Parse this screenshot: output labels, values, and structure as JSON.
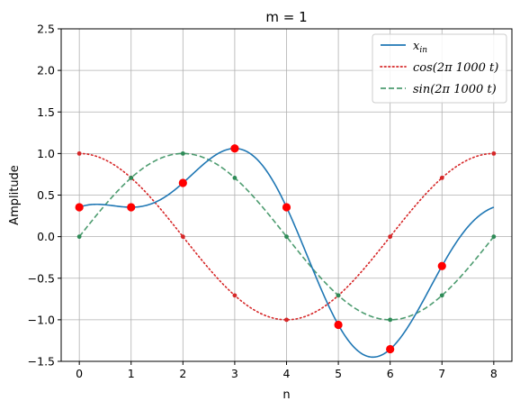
{
  "chart_data": {
    "type": "line",
    "title": "m = 1",
    "xlabel": "n",
    "ylabel": "Amplitude",
    "xlim": [
      -0.35,
      8.35
    ],
    "ylim": [
      -1.5,
      2.5
    ],
    "grid": true,
    "legend_position": "top-right",
    "x_ticks": [
      0,
      1,
      2,
      3,
      4,
      5,
      6,
      7,
      8
    ],
    "y_ticks": [
      -1.5,
      -1.0,
      -0.5,
      0.0,
      0.5,
      1.0,
      1.5,
      2.0,
      2.5
    ],
    "x_tick_labels": [
      "0",
      "1",
      "2",
      "3",
      "4",
      "5",
      "6",
      "7",
      "8"
    ],
    "y_tick_labels": [
      "−1.5",
      "−1.0",
      "−0.5",
      "0.0",
      "0.5",
      "1.0",
      "1.5",
      "2.0",
      "2.5"
    ],
    "series": [
      {
        "name": "x_in",
        "legend_main": "x",
        "legend_sub": "in",
        "style": "solid",
        "color": "#1f77b4",
        "samples": [
          0.354,
          0.354,
          0.646,
          1.061,
          0.354,
          -1.061,
          -1.354,
          -0.354
        ]
      },
      {
        "name": "cos(2π 1000 t)",
        "legend_label": "cos(2π 1000 t)",
        "style": "dotted",
        "color": "#d62728",
        "samples": [
          1.0,
          0.707,
          0.0,
          -0.707,
          -1.0,
          -0.707,
          0.0,
          0.707,
          1.0
        ]
      },
      {
        "name": "sin(2π 1000 t)",
        "legend_label": "sin(2π 1000 t)",
        "style": "dashed",
        "color": "#2e8b57",
        "samples": [
          0.0,
          0.707,
          1.0,
          0.707,
          0.0,
          -0.707,
          -1.0,
          -0.707,
          0.0
        ]
      }
    ],
    "sample_points": {
      "color": "#ff0000",
      "x": [
        0,
        1,
        2,
        3,
        4,
        5,
        6,
        7
      ],
      "y": [
        0.354,
        0.354,
        0.646,
        1.061,
        0.354,
        -1.061,
        -1.354,
        -0.354
      ]
    }
  }
}
